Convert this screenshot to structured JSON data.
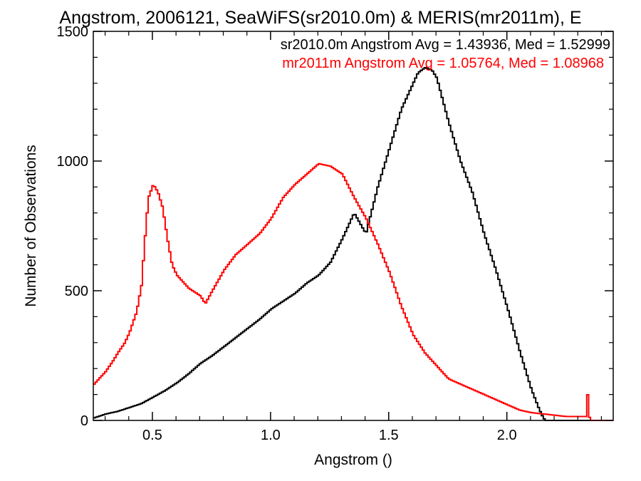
{
  "chart_data": {
    "type": "line",
    "title": "Angstrom, 2006121, SeaWiFS(sr2010.0m) & MERIS(mr2011m), E",
    "xlabel": "Angstrom ()",
    "ylabel": "Number of Observations",
    "xlim": [
      0.25,
      2.45
    ],
    "ylim": [
      0,
      1500
    ],
    "grid": false,
    "xticks": [
      0.5,
      1.0,
      1.5,
      2.0
    ],
    "xtick_labels": [
      "0.5",
      "1.0",
      "1.5",
      "2.0"
    ],
    "yticks": [
      0,
      500,
      1000,
      1500
    ],
    "ytick_labels": [
      "0",
      "500",
      "1000",
      "1500"
    ],
    "annotations": [
      {
        "text": "sr2010.0m Angstrom Avg = 1.43936, Med = 1.52999",
        "color": "#000000"
      },
      {
        "text": "mr2011m Angstrom Avg = 1.05764, Med = 1.08968",
        "color": "#ff0000"
      }
    ],
    "series": [
      {
        "color": "#000000",
        "x": [
          0.25,
          0.3,
          0.35,
          0.4,
          0.45,
          0.5,
          0.55,
          0.6,
          0.65,
          0.7,
          0.75,
          0.8,
          0.85,
          0.9,
          0.95,
          1.0,
          1.05,
          1.1,
          1.15,
          1.2,
          1.25,
          1.3,
          1.35,
          1.4,
          1.45,
          1.5,
          1.55,
          1.6,
          1.62,
          1.65,
          1.68,
          1.7,
          1.75,
          1.8,
          1.85,
          1.9,
          1.95,
          2.0,
          2.05,
          2.1,
          2.13,
          2.15,
          2.16,
          2.2,
          2.3,
          2.35,
          2.45
        ],
        "y": [
          10,
          25,
          35,
          50,
          65,
          90,
          115,
          145,
          180,
          220,
          250,
          285,
          320,
          355,
          390,
          430,
          460,
          490,
          530,
          560,
          610,
          700,
          800,
          720,
          900,
          1050,
          1200,
          1300,
          1340,
          1360,
          1350,
          1320,
          1150,
          1000,
          880,
          720,
          580,
          430,
          270,
          120,
          50,
          10,
          0,
          0,
          0,
          0,
          0
        ]
      },
      {
        "color": "#ff0000",
        "x": [
          0.25,
          0.28,
          0.3,
          0.33,
          0.35,
          0.38,
          0.4,
          0.43,
          0.45,
          0.47,
          0.48,
          0.5,
          0.52,
          0.54,
          0.56,
          0.58,
          0.6,
          0.63,
          0.65,
          0.7,
          0.72,
          0.75,
          0.8,
          0.85,
          0.9,
          0.95,
          1.0,
          1.05,
          1.1,
          1.15,
          1.2,
          1.25,
          1.3,
          1.35,
          1.4,
          1.45,
          1.5,
          1.55,
          1.6,
          1.65,
          1.7,
          1.75,
          1.8,
          1.85,
          1.9,
          1.95,
          2.0,
          2.05,
          2.1,
          2.15,
          2.2,
          2.25,
          2.3,
          2.33,
          2.34,
          2.345,
          2.35,
          2.45
        ],
        "y": [
          140,
          170,
          190,
          230,
          260,
          300,
          340,
          420,
          520,
          760,
          860,
          910,
          880,
          820,
          700,
          600,
          560,
          530,
          510,
          480,
          450,
          500,
          580,
          640,
          680,
          720,
          780,
          860,
          910,
          950,
          990,
          980,
          950,
          860,
          780,
          680,
          570,
          440,
          330,
          260,
          210,
          160,
          140,
          120,
          100,
          80,
          60,
          40,
          30,
          25,
          20,
          15,
          15,
          15,
          120,
          15,
          0,
          0
        ]
      }
    ]
  }
}
